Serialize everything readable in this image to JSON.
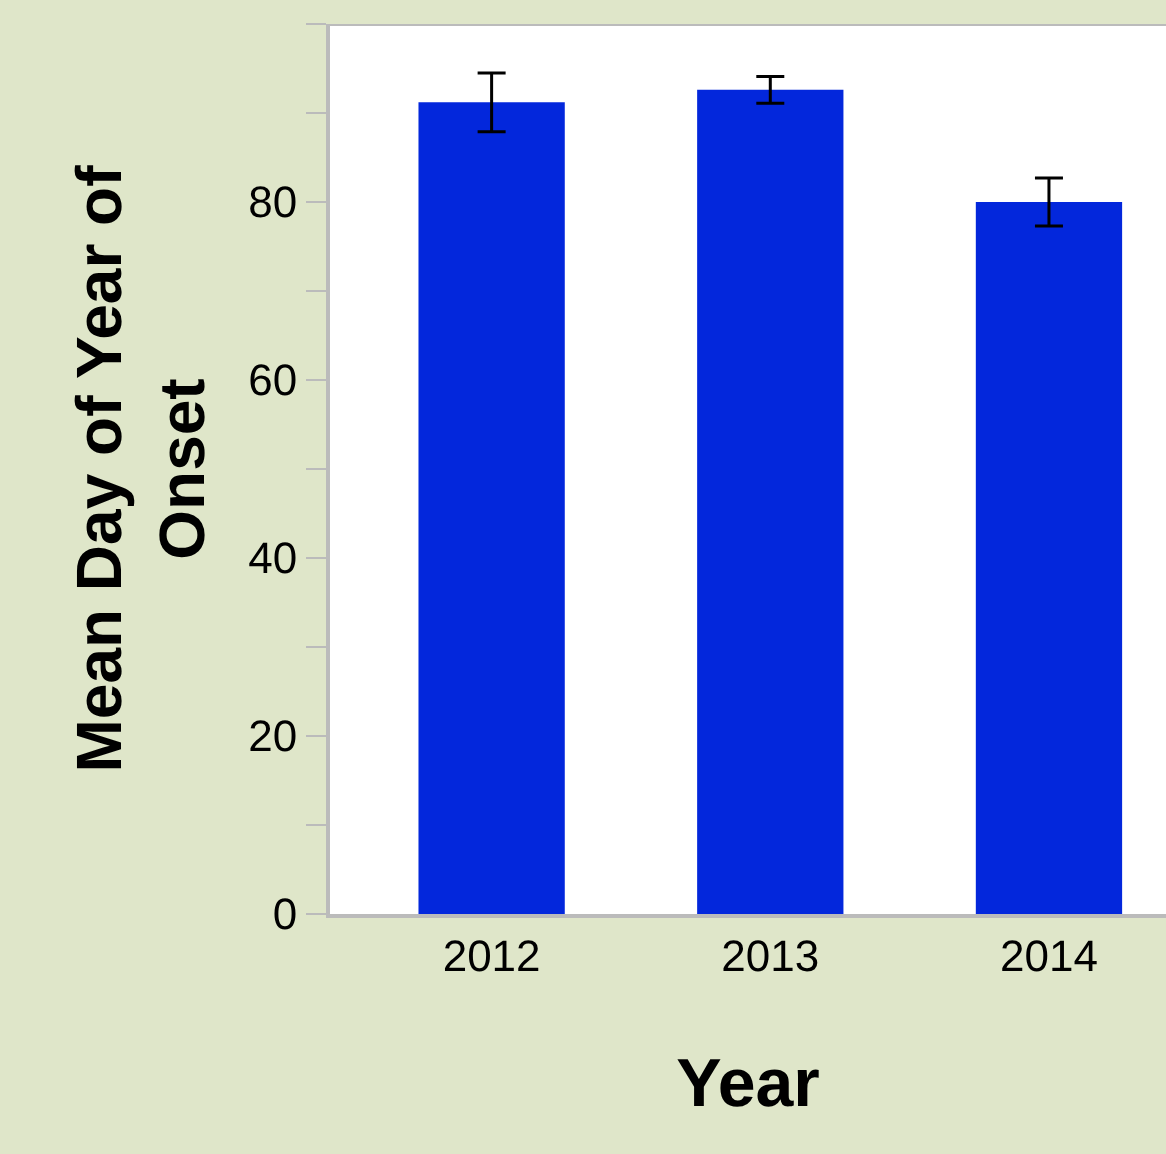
{
  "chart_data": {
    "type": "bar",
    "xlabel": "Year",
    "ylabel": "Mean Day of Year of Onset",
    "categories": [
      "2012",
      "2013",
      "2014"
    ],
    "values": [
      91.2,
      92.6,
      80.0
    ],
    "errors": [
      3.3,
      1.5,
      2.7
    ],
    "color": "#0327dc",
    "ylim": [
      0,
      100
    ],
    "yticks": [
      0,
      {
        "value": 10,
        "label": null
      },
      20,
      {
        "value": 30,
        "label": null
      },
      40,
      {
        "value": 50,
        "label": null
      },
      60,
      {
        "value": 70,
        "label": null
      },
      80,
      {
        "value": 90,
        "label": null
      },
      {
        "value": 100,
        "label": null
      }
    ]
  }
}
